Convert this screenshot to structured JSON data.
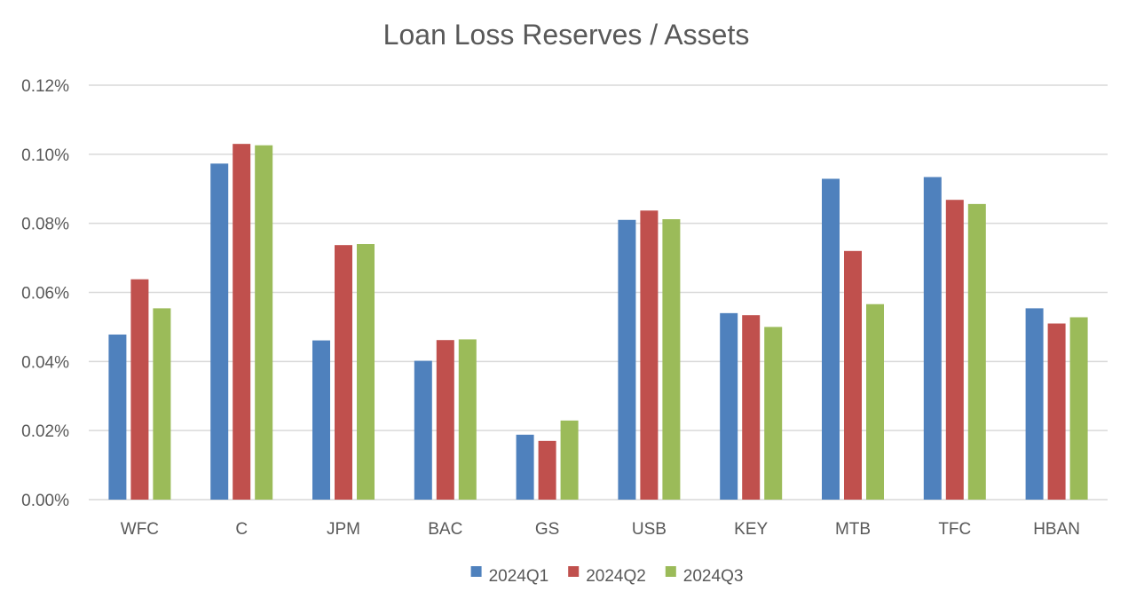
{
  "chart_data": {
    "type": "bar",
    "title": "Loan Loss Reserves  / Assets",
    "xlabel": "",
    "ylabel": "",
    "categories": [
      "WFC",
      "C",
      "JPM",
      "BAC",
      "GS",
      "USB",
      "KEY",
      "MTB",
      "TFC",
      "HBAN"
    ],
    "series": [
      {
        "name": "2024Q1",
        "color": "#4f81bd",
        "values": [
          0.0478,
          0.0973,
          0.0461,
          0.0402,
          0.0188,
          0.081,
          0.054,
          0.0929,
          0.0934,
          0.0554
        ]
      },
      {
        "name": "2024Q2",
        "color": "#c0504d",
        "values": [
          0.0638,
          0.103,
          0.0737,
          0.0462,
          0.017,
          0.0837,
          0.0534,
          0.072,
          0.0868,
          0.051
        ]
      },
      {
        "name": "2024Q3",
        "color": "#9bbb59",
        "values": [
          0.0554,
          0.1026,
          0.074,
          0.0464,
          0.0229,
          0.0812,
          0.05,
          0.0566,
          0.0856,
          0.0528
        ]
      }
    ],
    "ylim": [
      0,
      0.12
    ],
    "y_ticks": [
      {
        "value": 0.12,
        "label": "0.12%"
      },
      {
        "value": 0.1,
        "label": "0.10%"
      },
      {
        "value": 0.08,
        "label": "0.08%"
      },
      {
        "value": 0.06,
        "label": "0.06%"
      },
      {
        "value": 0.04,
        "label": "0.04%"
      },
      {
        "value": 0.02,
        "label": "0.02%"
      },
      {
        "value": 0.0,
        "label": "0.00%"
      }
    ],
    "grid": true,
    "legend_position": "bottom"
  }
}
